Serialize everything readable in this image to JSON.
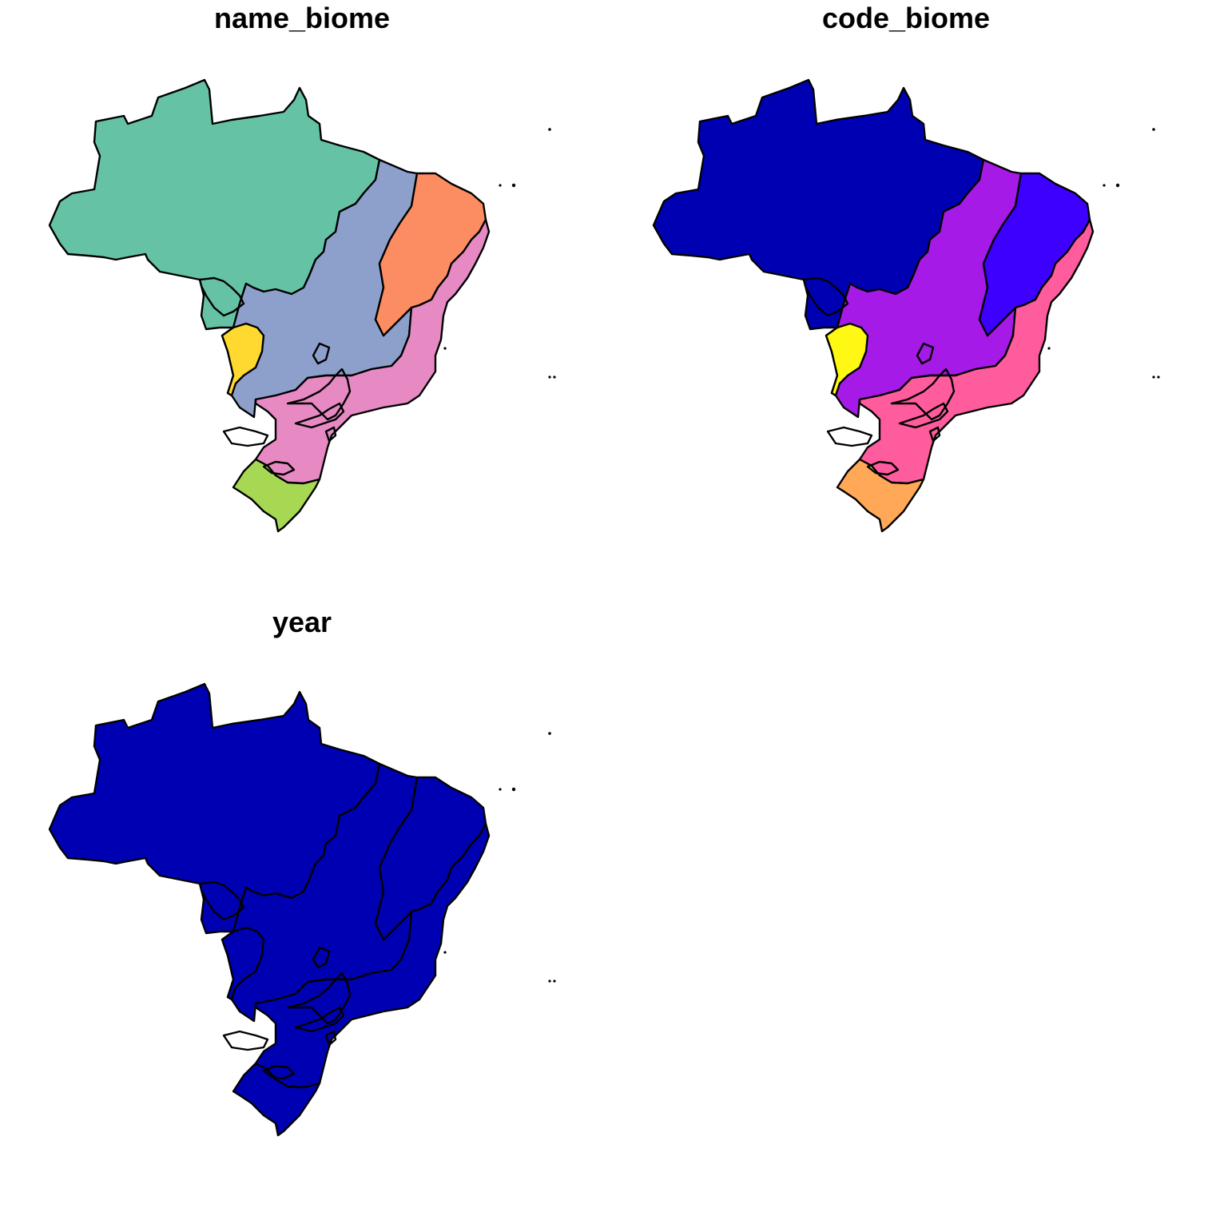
{
  "panels": [
    {
      "title": "name_biome",
      "colors": {
        "amazonia": "#66C2A5",
        "cerrado": "#8DA0CB",
        "caatinga": "#FC8D62",
        "mata_atlantica": "#E78AC3",
        "pantanal": "#FFD92F",
        "pampa": "#A6D854"
      }
    },
    {
      "title": "code_biome",
      "colors": {
        "amazonia": "#0000B3",
        "cerrado": "#A51AE6",
        "caatinga": "#3D00FF",
        "mata_atlantica": "#FF5C9D",
        "pantanal": "#FFF714",
        "pampa": "#FFA857"
      }
    },
    {
      "title": "year",
      "colors": {
        "amazonia": "#0000B3",
        "cerrado": "#0000B3",
        "caatinga": "#0000B3",
        "mata_atlantica": "#0000B3",
        "pantanal": "#0000B3",
        "pampa": "#0000B3"
      }
    }
  ]
}
